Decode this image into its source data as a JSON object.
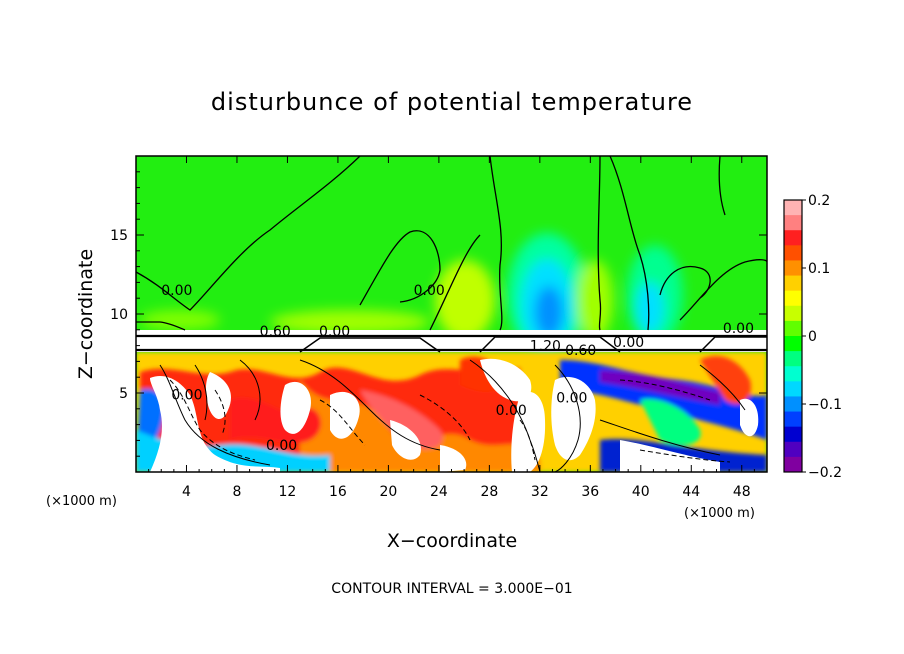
{
  "chart_data": {
    "type": "heatmap",
    "title": "disturbunce of potential temperature",
    "xlabel": "X−coordinate",
    "ylabel": "Z−coordinate",
    "x_unit": "(×1000 m)",
    "x_unit_right": "(×1000 m)",
    "xlim": [
      0,
      50
    ],
    "ylim": [
      0,
      20
    ],
    "xticks": [
      4,
      8,
      12,
      16,
      20,
      24,
      28,
      32,
      36,
      40,
      44,
      48
    ],
    "xtick_labels": [
      "4",
      "8",
      "12",
      "16",
      "20",
      "24",
      "28",
      "32",
      "36",
      "40",
      "44",
      "48"
    ],
    "yticks": [
      5,
      10,
      15
    ],
    "ytick_labels": [
      "5",
      "10",
      "15"
    ],
    "colorbar": {
      "range": [
        -0.2,
        0.2
      ],
      "ticks": [
        0.2,
        0.1,
        0,
        -0.1,
        -0.2
      ],
      "tick_labels": [
        "0.2",
        "0.1",
        "0",
        "−0.1",
        "−0.2"
      ],
      "colors": [
        "#ffb3b3",
        "#ff8080",
        "#ff2020",
        "#ff5000",
        "#ff9000",
        "#ffd000",
        "#ffff00",
        "#c8ff00",
        "#60ff00",
        "#00ff00",
        "#00ff80",
        "#00ffd0",
        "#00d8ff",
        "#0090ff",
        "#0040ff",
        "#0000d0",
        "#5000c0",
        "#8000a0"
      ]
    },
    "contour_labels": [
      {
        "text": "0.00",
        "x": 2,
        "z": 11.2
      },
      {
        "text": "0.00",
        "x": 22,
        "z": 11.2
      },
      {
        "text": "0.00",
        "x": 14.5,
        "z": 8.6
      },
      {
        "text": "0.60",
        "x": 9.8,
        "z": 8.6
      },
      {
        "text": "0.00",
        "x": 46.5,
        "z": 8.8
      },
      {
        "text": "1.20",
        "x": 31.2,
        "z": 7.7
      },
      {
        "text": "0.60",
        "x": 34.0,
        "z": 7.4
      },
      {
        "text": "0.00",
        "x": 37.8,
        "z": 7.9
      },
      {
        "text": "0.00",
        "x": 2.8,
        "z": 4.6
      },
      {
        "text": "0.00",
        "x": 10.3,
        "z": 1.4
      },
      {
        "text": "0.00",
        "x": 28.5,
        "z": 3.6
      },
      {
        "text": "0.00",
        "x": 33.3,
        "z": 4.4
      }
    ],
    "grid": false,
    "legend": "colorbar-right"
  },
  "footer": "CONTOUR INTERVAL = 3.000E−01"
}
